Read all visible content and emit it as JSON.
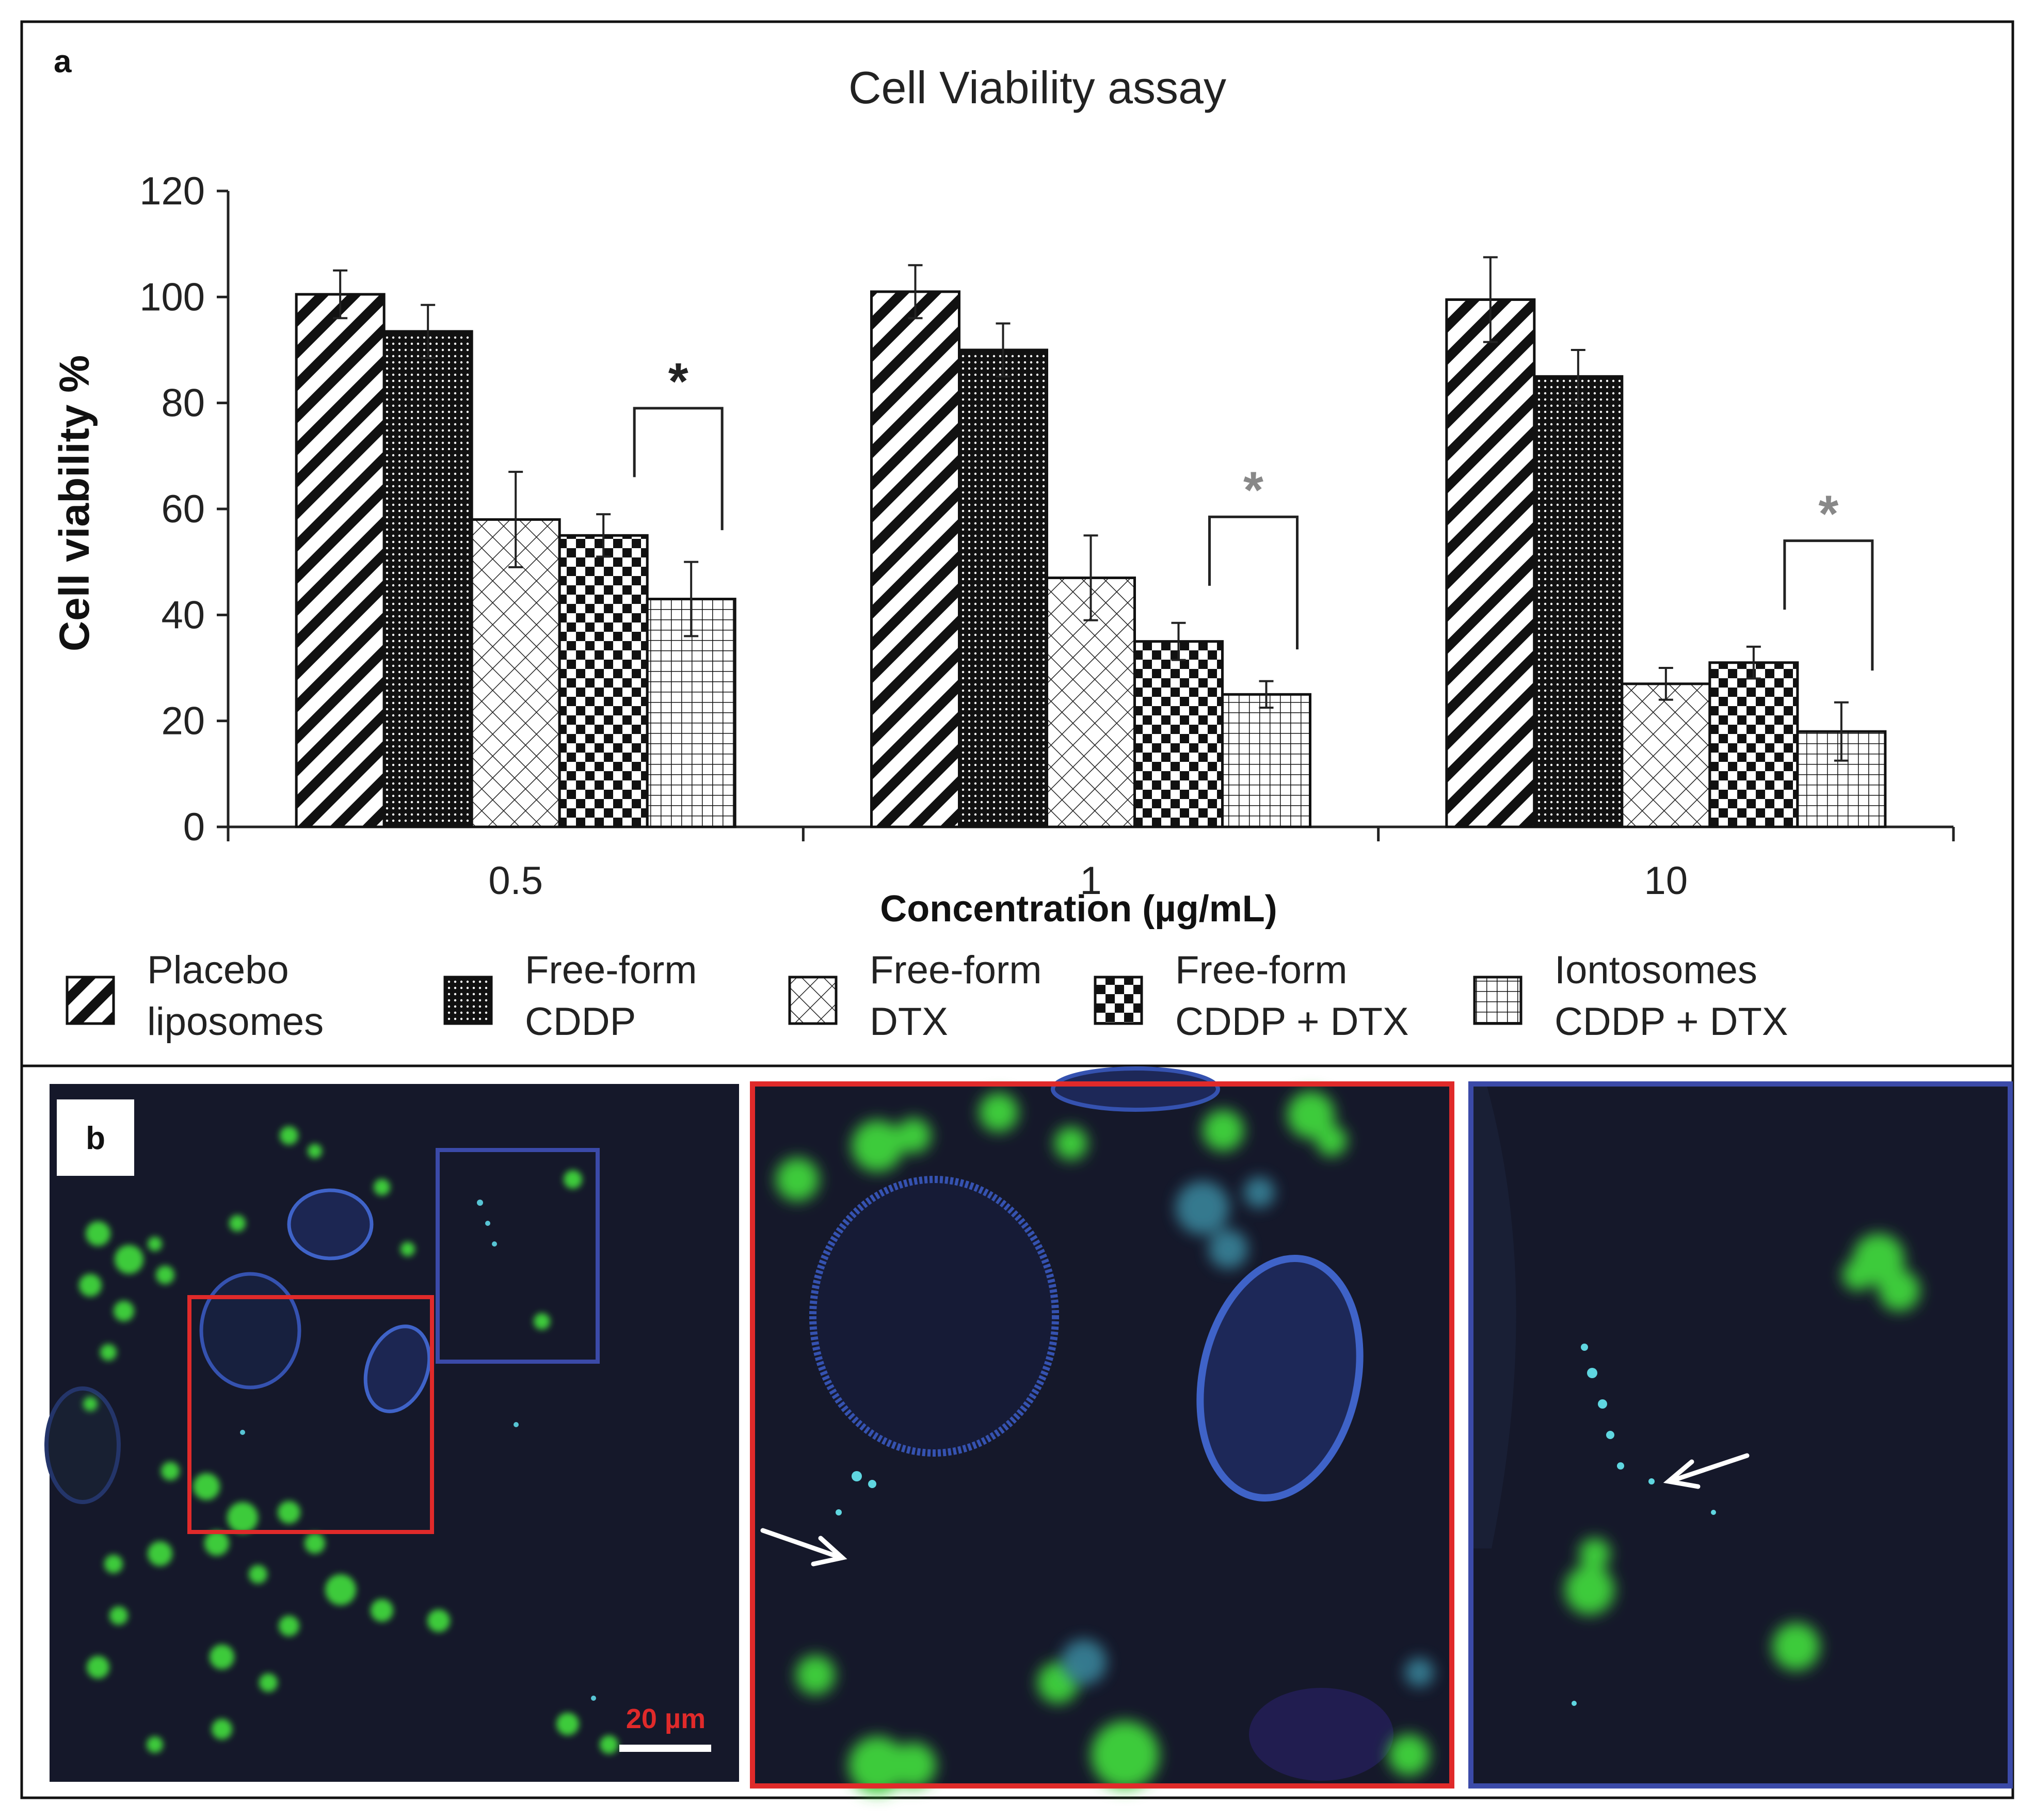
{
  "panel_a": {
    "letter": "a",
    "chart_data": {
      "type": "bar",
      "title": "Cell Viability assay",
      "xlabel": "Concentration  (µg/mL)",
      "ylabel": "Cell  viability %",
      "categories": [
        "0.5",
        "1",
        "10"
      ],
      "ylim": [
        0,
        120
      ],
      "yticks": [
        "0",
        "20",
        "40",
        "60",
        "80",
        "100",
        "120"
      ],
      "grid": false,
      "legend_position": "bottom",
      "series": [
        {
          "name": "Placebo liposomes",
          "legend_lines": [
            "Placebo",
            "liposomes"
          ],
          "pattern": "diagonal-stripes",
          "values": [
            100.5,
            101,
            99.5
          ],
          "errors": [
            4.5,
            5,
            8
          ]
        },
        {
          "name": "Free-form CDDP",
          "legend_lines": [
            "Free-form",
            "CDDP"
          ],
          "pattern": "dense-dots",
          "values": [
            93.5,
            90,
            85
          ],
          "errors": [
            5,
            5,
            5
          ]
        },
        {
          "name": "Free-form DTX",
          "legend_lines": [
            "Free-form",
            "DTX"
          ],
          "pattern": "crosshatch-light",
          "values": [
            58,
            47,
            27
          ],
          "errors": [
            9,
            8,
            3
          ]
        },
        {
          "name": "Free-form CDDP + DTX",
          "legend_lines": [
            "Free-form",
            "CDDP + DTX"
          ],
          "pattern": "checkerboard",
          "values": [
            55,
            35,
            31
          ],
          "errors": [
            4,
            3.5,
            3
          ]
        },
        {
          "name": "Iontosomes CDDP + DTX",
          "legend_lines": [
            "Iontosomes",
            "CDDP + DTX"
          ],
          "pattern": "grid",
          "values": [
            43,
            25,
            18
          ],
          "errors": [
            7,
            2.5,
            5.5
          ]
        }
      ],
      "annotations": [
        {
          "text": "*",
          "category": "0.5",
          "between": [
            "Free-form CDDP + DTX",
            "Iontosomes CDDP + DTX"
          ],
          "color": "#222222"
        },
        {
          "text": "*",
          "category": "1",
          "between": [
            "Free-form CDDP + DTX",
            "Iontosomes CDDP + DTX"
          ],
          "color": "#888888"
        },
        {
          "text": "*",
          "category": "10",
          "between": [
            "Free-form CDDP + DTX",
            "Iontosomes CDDP + DTX"
          ],
          "color": "#888888"
        }
      ]
    }
  },
  "panel_b": {
    "letter": "b",
    "scale_bar_label": "20 µm",
    "colors": {
      "background": "#15182a",
      "nucleus": "#3f63c8",
      "particles": "#39c83a",
      "red_box": "#e02a2a",
      "blue_box": "#3b4aa8",
      "scale_text": "#e02a2a"
    }
  }
}
